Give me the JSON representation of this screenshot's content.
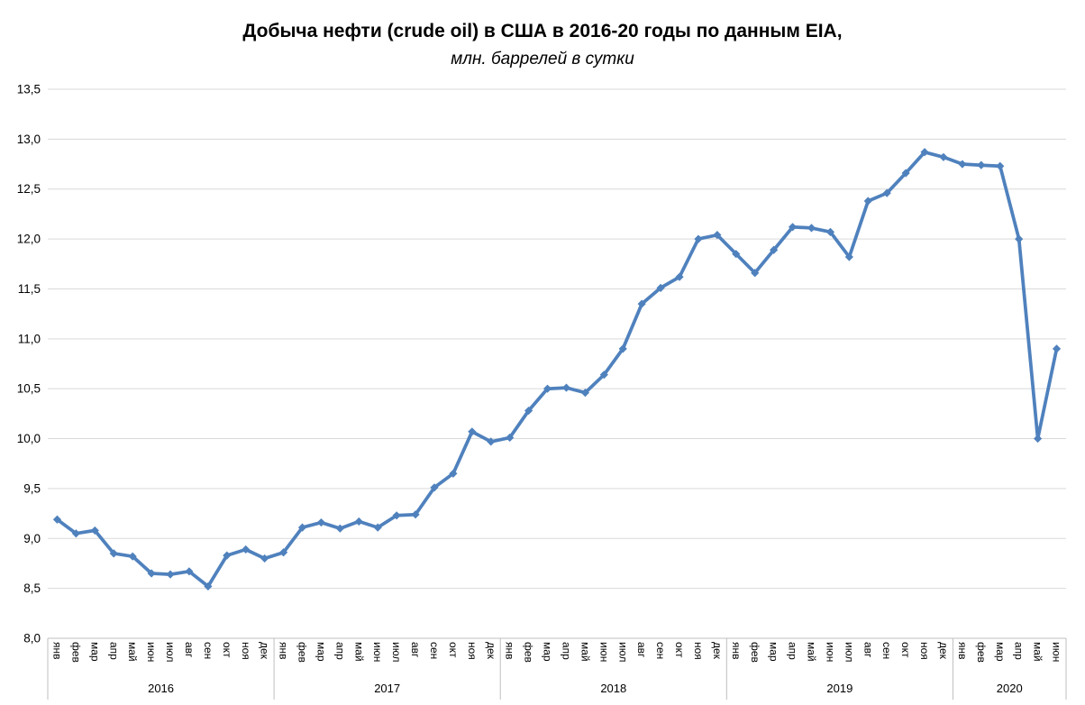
{
  "chart_data": {
    "type": "line",
    "title": "Добыча нефти (crude oil) в США в 2016-20 годы по данным EIA,",
    "subtitle": "млн. баррелей в сутки",
    "ylabel": "",
    "xlabel": "",
    "ylim": [
      8.0,
      13.5
    ],
    "ytick_step": 0.5,
    "ytick_labels": [
      "8,0",
      "8,5",
      "9,0",
      "9,5",
      "10,0",
      "10,5",
      "11,0",
      "11,5",
      "12,0",
      "12,5",
      "13,0",
      "13,5"
    ],
    "decimal_separator": ",",
    "grid": "horizontal",
    "legend": "none",
    "months": [
      "янв",
      "фев",
      "мар",
      "апр",
      "май",
      "июн",
      "июл",
      "авг",
      "сен",
      "окт",
      "ноя",
      "дек"
    ],
    "years": [
      {
        "label": "2016",
        "values": [
          9.19,
          9.05,
          9.08,
          8.85,
          8.82,
          8.65,
          8.64,
          8.67,
          8.52,
          8.83,
          8.89,
          8.8
        ]
      },
      {
        "label": "2017",
        "values": [
          8.86,
          9.11,
          9.16,
          9.1,
          9.17,
          9.11,
          9.23,
          9.24,
          9.51,
          9.65,
          10.07,
          9.97
        ]
      },
      {
        "label": "2018",
        "values": [
          10.01,
          10.28,
          10.5,
          10.51,
          10.46,
          10.64,
          10.9,
          11.35,
          11.51,
          11.62,
          12.0,
          12.04
        ]
      },
      {
        "label": "2019",
        "values": [
          11.85,
          11.66,
          11.89,
          12.12,
          12.11,
          12.07,
          11.82,
          12.38,
          12.46,
          12.66,
          12.87,
          12.82
        ]
      },
      {
        "label": "2020",
        "values": [
          12.75,
          12.74,
          12.73,
          12.0,
          10.0,
          10.9
        ]
      }
    ],
    "series": [
      {
        "name": "Добыча нефти, млн. баррелей в сутки",
        "marker": "diamond",
        "color": "#4F81BD"
      }
    ],
    "colors": {
      "series_line": "#4F81BD",
      "gridline": "#D9D9D9",
      "axis_line": "#BFBFBF",
      "text": "#000000",
      "background": "#FFFFFF"
    }
  }
}
